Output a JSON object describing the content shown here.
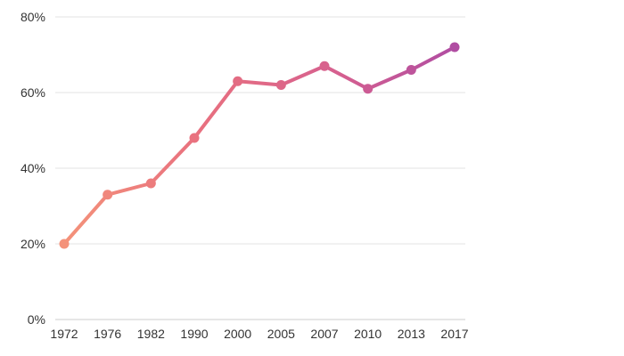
{
  "chart_data": {
    "type": "line",
    "title": "",
    "xlabel": "",
    "ylabel": "",
    "ylim": [
      0,
      80
    ],
    "y_ticks": [
      0,
      20,
      40,
      60,
      80
    ],
    "y_tick_labels": [
      "0%",
      "20%",
      "40%",
      "60%",
      "80%"
    ],
    "categories": [
      "1972",
      "1976",
      "1982",
      "1990",
      "2000",
      "2005",
      "2007",
      "2010",
      "2013",
      "2017"
    ],
    "series": [
      {
        "values": [
          20,
          33,
          36,
          48,
          63,
          62,
          67,
          61,
          66,
          72
        ]
      }
    ],
    "grid": true,
    "legend": "none",
    "gradient_colors": [
      "#f4927a",
      "#e8707f",
      "#d6608f",
      "#b04da2"
    ]
  }
}
